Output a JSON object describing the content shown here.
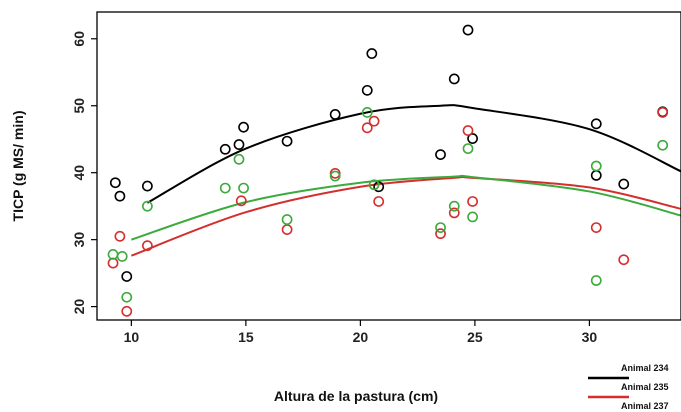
{
  "chart_data": {
    "type": "scatter",
    "xlabel": "Altura de la pastura (cm)",
    "ylabel": "TICP (g MS/ min)",
    "xlim": [
      8.5,
      34
    ],
    "ylim": [
      18,
      64
    ],
    "xticks": [
      10,
      15,
      20,
      25,
      30
    ],
    "yticks": [
      20,
      30,
      40,
      50,
      60
    ],
    "grid": false,
    "legend_position": "bottom-right",
    "series": [
      {
        "name": "Animal 234",
        "color": "#000000",
        "points": [
          [
            9.3,
            38.5
          ],
          [
            9.5,
            36.5
          ],
          [
            9.8,
            24.5
          ],
          [
            10.7,
            38.0
          ],
          [
            14.1,
            43.5
          ],
          [
            14.7,
            44.2
          ],
          [
            14.9,
            46.8
          ],
          [
            16.8,
            44.7
          ],
          [
            18.9,
            48.7
          ],
          [
            20.3,
            52.3
          ],
          [
            20.5,
            57.8
          ],
          [
            20.8,
            37.9
          ],
          [
            23.5,
            42.7
          ],
          [
            24.1,
            54.0
          ],
          [
            24.7,
            61.3
          ],
          [
            24.9,
            45.1
          ],
          [
            30.3,
            47.3
          ],
          [
            30.3,
            39.6
          ],
          [
            31.5,
            38.3
          ],
          [
            33.2,
            49.1
          ]
        ],
        "fit": [
          [
            10.7,
            35.5
          ],
          [
            15,
            43.6
          ],
          [
            20,
            48.8
          ],
          [
            23.5,
            50.0
          ],
          [
            25,
            49.6
          ],
          [
            30,
            46.5
          ],
          [
            34,
            40.2
          ]
        ]
      },
      {
        "name": "Animal 235",
        "color": "#d42f2f",
        "points": [
          [
            9.2,
            26.5
          ],
          [
            9.5,
            30.5
          ],
          [
            9.8,
            19.3
          ],
          [
            10.7,
            29.1
          ],
          [
            14.8,
            35.8
          ],
          [
            16.8,
            31.5
          ],
          [
            18.9,
            39.9
          ],
          [
            20.3,
            46.7
          ],
          [
            20.6,
            47.7
          ],
          [
            20.8,
            35.7
          ],
          [
            23.5,
            30.9
          ],
          [
            24.1,
            34.0
          ],
          [
            24.7,
            46.3
          ],
          [
            24.9,
            35.7
          ],
          [
            30.3,
            31.8
          ],
          [
            31.5,
            27.0
          ],
          [
            33.2,
            49.0
          ]
        ],
        "fit": [
          [
            10,
            27.6
          ],
          [
            15,
            34.1
          ],
          [
            20,
            37.9
          ],
          [
            24,
            39.2
          ],
          [
            25,
            39.2
          ],
          [
            30,
            37.8
          ],
          [
            34,
            34.6
          ]
        ]
      },
      {
        "name": "Animal 237",
        "color": "#3caa3c",
        "points": [
          [
            9.2,
            27.8
          ],
          [
            9.6,
            27.5
          ],
          [
            9.8,
            21.4
          ],
          [
            10.7,
            35.0
          ],
          [
            14.1,
            37.7
          ],
          [
            14.7,
            42.0
          ],
          [
            14.9,
            37.7
          ],
          [
            16.8,
            33.0
          ],
          [
            18.9,
            39.5
          ],
          [
            20.3,
            49.0
          ],
          [
            20.6,
            38.2
          ],
          [
            23.5,
            31.8
          ],
          [
            24.1,
            35.0
          ],
          [
            24.7,
            43.6
          ],
          [
            24.9,
            33.4
          ],
          [
            30.3,
            41.0
          ],
          [
            30.3,
            23.9
          ],
          [
            33.2,
            44.1
          ]
        ],
        "fit": [
          [
            10,
            30.0
          ],
          [
            15,
            35.6
          ],
          [
            20,
            38.5
          ],
          [
            24,
            39.4
          ],
          [
            25,
            39.3
          ],
          [
            30,
            37.2
          ],
          [
            34,
            33.6
          ]
        ]
      }
    ]
  }
}
